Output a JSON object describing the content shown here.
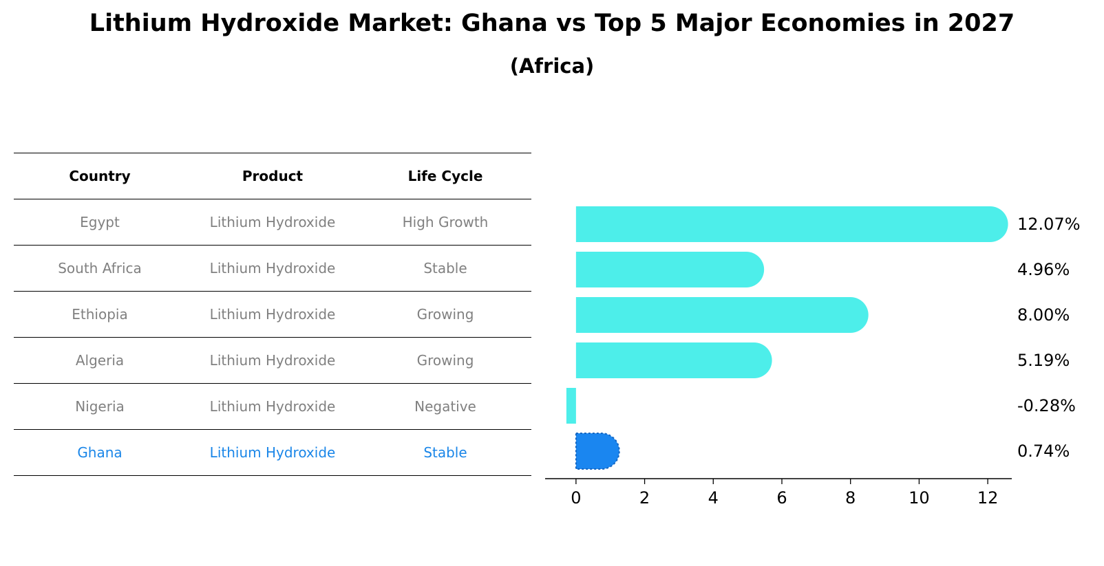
{
  "title": "Lithium Hydroxide Market: Ghana vs Top 5 Major Economies in 2027",
  "subtitle": "(Africa)",
  "table": {
    "headers": [
      "Country",
      "Product",
      "Life Cycle"
    ],
    "rows": [
      {
        "country": "Egypt",
        "product": "Lithium Hydroxide",
        "life_cycle": "High Growth"
      },
      {
        "country": "South Africa",
        "product": "Lithium Hydroxide",
        "life_cycle": "Stable"
      },
      {
        "country": "Ethiopia",
        "product": "Lithium Hydroxide",
        "life_cycle": "Growing"
      },
      {
        "country": "Algeria",
        "product": "Lithium Hydroxide",
        "life_cycle": "Growing"
      },
      {
        "country": "Nigeria",
        "product": "Lithium Hydroxide",
        "life_cycle": "Negative"
      },
      {
        "country": "Ghana",
        "product": "Lithium Hydroxide",
        "life_cycle": "Stable"
      }
    ]
  },
  "chart_data": {
    "type": "bar",
    "orientation": "horizontal",
    "categories": [
      "Egypt",
      "South Africa",
      "Ethiopia",
      "Algeria",
      "Nigeria",
      "Ghana"
    ],
    "values": [
      12.07,
      4.96,
      8.0,
      5.19,
      -0.28,
      0.74
    ],
    "value_labels": [
      "12.07%",
      "4.96%",
      "8.00%",
      "5.19%",
      "-0.28%",
      "0.74%"
    ],
    "xticks": [
      0,
      2,
      4,
      6,
      8,
      10,
      12
    ],
    "xlim": [
      -0.9,
      12.7
    ],
    "highlight_index": 5,
    "colors": {
      "bar": "#4deeea",
      "highlight": "#1a86f0",
      "table_text": "#808080",
      "table_highlight": "#1a86e8"
    },
    "grid": false
  }
}
